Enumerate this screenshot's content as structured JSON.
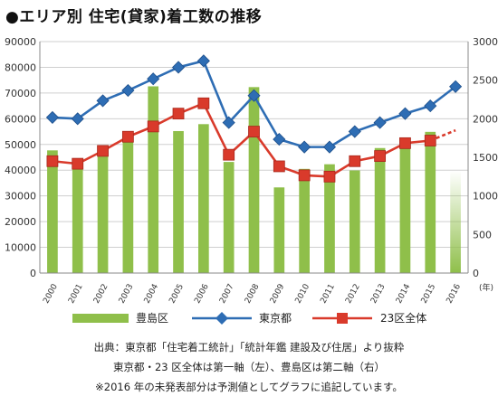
{
  "title": "●エリア別 住宅(貸家)着工数の推移",
  "chart_data": {
    "type": "bar+line",
    "categories": [
      "2000",
      "2001",
      "2002",
      "2003",
      "2004",
      "2005",
      "2006",
      "2007",
      "2008",
      "2009",
      "2010",
      "2011",
      "2012",
      "2013",
      "2014",
      "2015",
      "2016"
    ],
    "x_unit": "(年)",
    "y_left": {
      "min": 0,
      "max": 90000,
      "ticks": [
        "0",
        "10000",
        "20000",
        "30000",
        "40000",
        "50000",
        "60000",
        "70000",
        "80000",
        "90000"
      ]
    },
    "y_right": {
      "min": 0,
      "max": 3000,
      "ticks": [
        "0",
        "500",
        "1000",
        "1500",
        "2000",
        "2500",
        "3000"
      ]
    },
    "grid": true,
    "legend_position": "bottom",
    "series": [
      {
        "name": "豊島区",
        "type": "bar",
        "axis": "right",
        "color": "#8fbf4a",
        "values": [
          1590,
          1420,
          1560,
          1720,
          2420,
          1840,
          1930,
          1440,
          2410,
          1110,
          1350,
          1410,
          1330,
          1620,
          1620,
          1830,
          1330
        ],
        "estimated_last": true
      },
      {
        "name": "東京都",
        "type": "line",
        "axis": "left",
        "color": "#2e6db4",
        "marker": "diamond",
        "values": [
          60500,
          60000,
          67000,
          71000,
          75500,
          80000,
          82500,
          58500,
          69000,
          52000,
          49000,
          49000,
          55000,
          58500,
          62000,
          65000,
          72500
        ]
      },
      {
        "name": "23区全体",
        "type": "line",
        "axis": "left",
        "color": "#d93a2b",
        "marker": "square",
        "values": [
          43500,
          42500,
          47500,
          53000,
          57000,
          62000,
          66000,
          46000,
          55000,
          41500,
          38000,
          37500,
          43500,
          45500,
          50500,
          51500,
          55500
        ],
        "estimated_last": true
      }
    ]
  },
  "notes": [
    "出典：東京都「住宅着工統計」「統計年鑑 建設及び住居」より抜粋",
    "東京都・23 区全体は第一軸（左）、豊島区は第二軸（右）",
    "※2016 年の未発表部分は予測値としてグラフに追記しています。"
  ]
}
